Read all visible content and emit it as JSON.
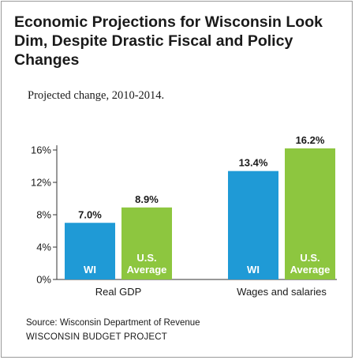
{
  "title": "Economic Projections for Wisconsin Look Dim, Despite Drastic Fiscal and Policy Changes",
  "subtitle": "Projected change, 2010-2014.",
  "source": "Source: Wisconsin Department of Revenue",
  "organization": "WISCONSIN BUDGET PROJECT",
  "colors": {
    "WI": "#1f9ad6",
    "US": "#8dc63f"
  },
  "chart_data": {
    "type": "bar",
    "categories": [
      "Real GDP",
      "Wages and salaries"
    ],
    "series": [
      {
        "name": "WI",
        "values": [
          7.0,
          13.4
        ],
        "labels": [
          "7.0%",
          "13.4%"
        ],
        "bar_text": [
          "WI"
        ]
      },
      {
        "name": "U.S. Average",
        "values": [
          8.9,
          16.2
        ],
        "labels": [
          "8.9%",
          "16.2%"
        ],
        "bar_text": [
          "U.S.",
          "Average"
        ]
      }
    ],
    "yticks": [
      0,
      4,
      8,
      12,
      16
    ],
    "ytick_labels": [
      "0%",
      "4%",
      "8%",
      "12%",
      "16%"
    ],
    "ylim": [
      0,
      16.5
    ],
    "grid": false,
    "legend": "none"
  }
}
